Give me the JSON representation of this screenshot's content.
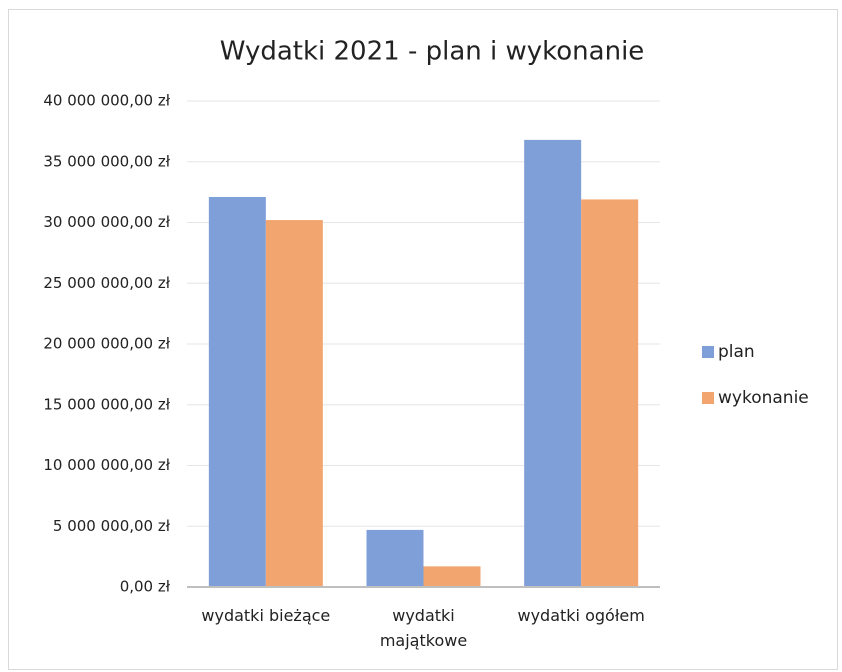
{
  "chart_data": {
    "type": "bar",
    "title": "Wydatki 2021 - plan i wykonanie",
    "categories": [
      "wydatki bieżące",
      "wydatki majątkowe",
      "wydatki ogółem"
    ],
    "series": [
      {
        "name": "plan",
        "color": "#7f9fd9",
        "values": [
          32100000,
          4700000,
          36800000
        ]
      },
      {
        "name": "wykonanie",
        "color": "#f2a56e",
        "values": [
          30200000,
          1700000,
          31900000
        ]
      }
    ],
    "ylim": [
      0,
      40000000
    ],
    "yticks": [
      {
        "value": 0,
        "label": "0,00 zł"
      },
      {
        "value": 5000000,
        "label": "5 000 000,00 zł"
      },
      {
        "value": 10000000,
        "label": "10 000 000,00 zł"
      },
      {
        "value": 15000000,
        "label": "15 000 000,00 zł"
      },
      {
        "value": 20000000,
        "label": "20 000 000,00 zł"
      },
      {
        "value": 25000000,
        "label": "25 000 000,00 zł"
      },
      {
        "value": 30000000,
        "label": "30 000 000,00 zł"
      },
      {
        "value": 35000000,
        "label": "35 000 000,00 zł"
      },
      {
        "value": 40000000,
        "label": "40 000 000,00 zł"
      }
    ],
    "grid": true,
    "legend": "right"
  }
}
